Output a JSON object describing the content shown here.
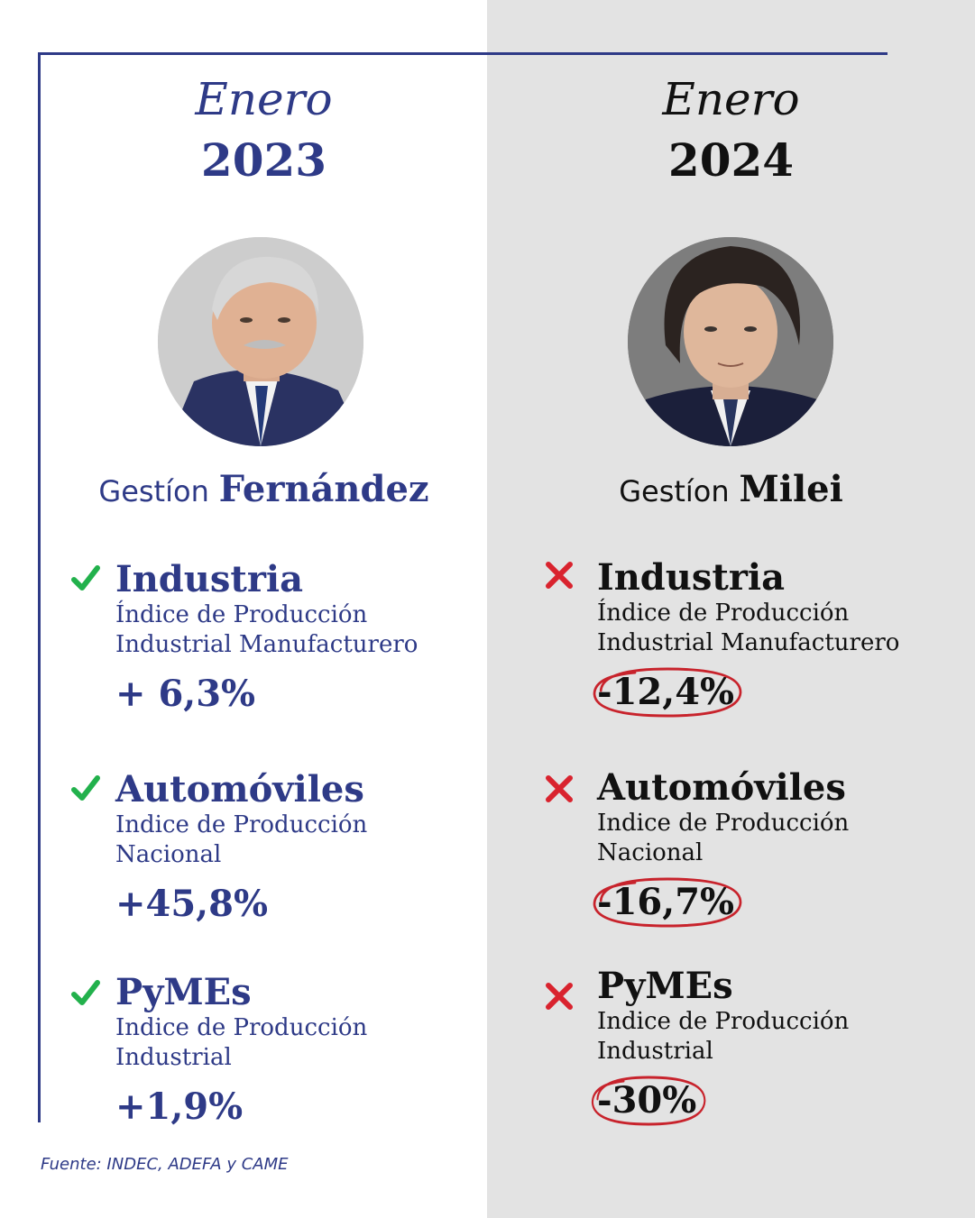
{
  "colors": {
    "left_accent": "#2e3a87",
    "right_text": "#111111",
    "check_green": "#22b14c",
    "cross_red": "#d9232e",
    "right_bg": "#e3e3e3"
  },
  "left": {
    "month": "Enero",
    "year": "2023",
    "gestion_prefix": "Gestíon",
    "gestion_name": "Fernández",
    "items": [
      {
        "title": "Industria",
        "sub1": "Índice de Producción",
        "sub2": "Industrial Manufacturero",
        "value": "+ 6,3%",
        "icon": "check-icon"
      },
      {
        "title": "Automóviles",
        "sub1": "Indice de Producción",
        "sub2": "Nacional",
        "value": "+45,8%",
        "icon": "check-icon"
      },
      {
        "title": "PyMEs",
        "sub1": "Indice de Producción",
        "sub2": "Industrial",
        "value": "+1,9%",
        "icon": "check-icon"
      }
    ]
  },
  "right": {
    "month": "Enero",
    "year": "2024",
    "gestion_prefix": "Gestíon",
    "gestion_name": "Milei",
    "items": [
      {
        "title": "Industria",
        "sub1": "Índice de Producción",
        "sub2": "Industrial Manufacturero",
        "value": "-12,4%",
        "icon": "cross-icon"
      },
      {
        "title": "Automóviles",
        "sub1": "Indice de Producción",
        "sub2": "Nacional",
        "value": "-16,7%",
        "icon": "cross-icon"
      },
      {
        "title": "PyMEs",
        "sub1": "Indice de Producción",
        "sub2": "Industrial",
        "value": "-30%",
        "icon": "cross-icon"
      }
    ]
  },
  "source": "Fuente: INDEC, ADEFA y CAME"
}
